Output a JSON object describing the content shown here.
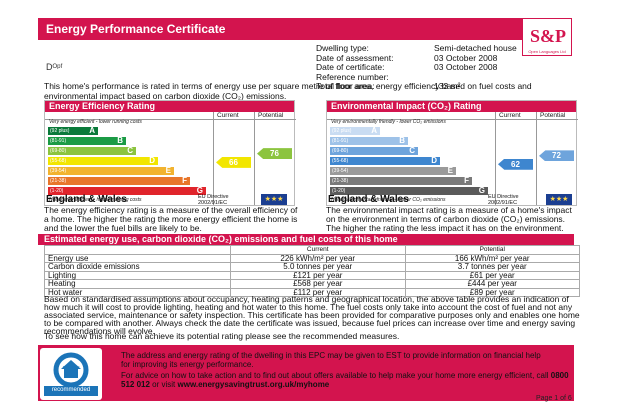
{
  "header": {
    "title": "Energy Performance Certificate",
    "logo_text": "S&P",
    "logo_sub": "Open Languages Ltd"
  },
  "address": "Dᴼᵖᶠ",
  "property": [
    {
      "label": "Dwelling type:",
      "value": "Semi-detached house"
    },
    {
      "label": "Date of assessment:",
      "value": "03 October 2008"
    },
    {
      "label": "Date of certificate:",
      "value": "03 October 2008"
    },
    {
      "label": "Reference number:",
      "value": ""
    },
    {
      "label": "Total floor area:",
      "value": "133 m²"
    }
  ],
  "intro": "This home's performance is rated in terms of energy use per square metre of floor area, energy efficiency based on fuel costs and environmental impact based on carbon dioxide (CO₂) emissions.",
  "efficiency": {
    "title": "Energy Efficiency Rating",
    "current_label": "Current",
    "potential_label": "Potential",
    "top_note": "Very energy efficient - lower running costs",
    "bottom_note": "Not energy efficient - higher running costs",
    "bands": [
      {
        "range": "(92 plus)",
        "letter": "A",
        "color": "#0a7a3a"
      },
      {
        "range": "(81-91)",
        "letter": "B",
        "color": "#1b9b45"
      },
      {
        "range": "(69-80)",
        "letter": "C",
        "color": "#8cc43f"
      },
      {
        "range": "(55-68)",
        "letter": "D",
        "color": "#f2e600"
      },
      {
        "range": "(39-54)",
        "letter": "E",
        "color": "#f2b32f"
      },
      {
        "range": "(21-38)",
        "letter": "F",
        "color": "#e8762b"
      },
      {
        "range": "(1-20)",
        "letter": "G",
        "color": "#e0242b"
      }
    ],
    "current": 66,
    "potential": 76,
    "current_color": "#f2e600",
    "potential_color": "#8cc43f",
    "country": "England & Wales",
    "directive": "EU Directive\n2002/91/EC",
    "flag": "★★★",
    "description": "The energy efficiency rating is a measure of the overall efficiency of a home. The higher the rating the more energy efficient the home is and the lower the fuel bills are likely to be."
  },
  "environmental": {
    "title": "Environmental Impact (CO₂) Rating",
    "current_label": "Current",
    "potential_label": "Potential",
    "top_note": "Very environmentally friendly - lower CO₂ emissions",
    "bottom_note": "Not environmentally friendly - higher CO₂ emissions",
    "bands": [
      {
        "range": "(92 plus)",
        "letter": "A",
        "color": "#c9dcf2"
      },
      {
        "range": "(81-91)",
        "letter": "B",
        "color": "#9ec2e8"
      },
      {
        "range": "(69-80)",
        "letter": "C",
        "color": "#6ea4dc"
      },
      {
        "range": "(55-68)",
        "letter": "D",
        "color": "#3e86cf"
      },
      {
        "range": "(39-54)",
        "letter": "E",
        "color": "#9a9a9a"
      },
      {
        "range": "(21-38)",
        "letter": "F",
        "color": "#7a7a7a"
      },
      {
        "range": "(1-20)",
        "letter": "G",
        "color": "#5a5a5a"
      }
    ],
    "current": 62,
    "potential": 72,
    "current_color": "#3e86cf",
    "potential_color": "#6ea4dc",
    "country": "England & Wales",
    "directive": "EU Directive\n2002/91/EC",
    "flag": "★★★",
    "description": "The environmental impact rating is a measure of a home's impact on the environment in terms of carbon dioxide (CO₂) emissions. The higher the rating the less impact it has on the environment."
  },
  "estimates": {
    "title": "Estimated energy use, carbon dioxide (CO₂) emissions and fuel costs of this home",
    "col_current": "Current",
    "col_potential": "Potential",
    "rows": [
      {
        "label": "Energy use",
        "current": "226 kWh/m² per year",
        "potential": "166 kWh/m² per year"
      },
      {
        "label": "Carbon dioxide emissions",
        "current": "5.0 tonnes per year",
        "potential": "3.7 tonnes per year"
      },
      {
        "label": "Lighting",
        "current": "£121 per year",
        "potential": "£61 per year"
      },
      {
        "label": "Heating",
        "current": "£568 per year",
        "potential": "£444 per year"
      },
      {
        "label": "Hot water",
        "current": "£112 per year",
        "potential": "£89 per year"
      }
    ]
  },
  "assumptions": "Based on standardised assumptions about occupancy, heating patterns and geographical location, the above table provides an indication of how much it will cost to provide lighting, heating and hot water to this home. The fuel costs only take into account the cost of fuel and not any associated service, maintenance or safety inspection. This certificate has been provided for comparative purposes only and enables one home to be compared with another. Always check the date the certificate was issued, because fuel prices can increase over time and energy saving recommendations will evolve.",
  "see_how": "To see how this home can achieve its potential rating please see the recommended measures.",
  "footer": {
    "logo_line1": "energy",
    "logo_line2": "recommended",
    "line1": "The address and energy rating of the dwelling in this EPC may be given to EST to provide information on financial help for improving its energy performance.",
    "line2": "For advice on how to take action and to find out about offers available to help make your home more energy efficient, call",
    "phone": "0800 512 012",
    "or_visit": "or visit",
    "website": "www.energysavingtrust.org.uk/myhome",
    "page": "Page 1 of 6"
  }
}
